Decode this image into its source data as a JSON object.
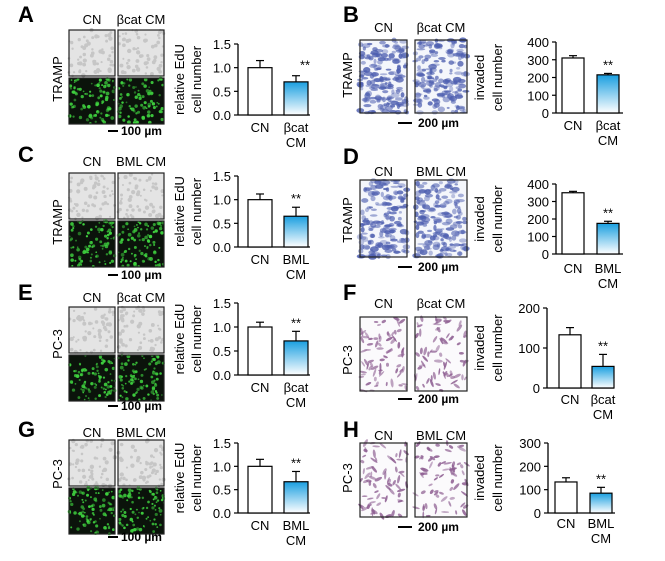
{
  "colors": {
    "control_bar": "#ffffff",
    "treated_bar_top": "#1a9fe0",
    "treated_bar_bottom": "#ffffff",
    "edu_stain": "#3fd23f",
    "crystal_violet_tramp": "#4e5fb0",
    "crystal_violet_pc3": "#8e5f92"
  },
  "chart_data": [
    {
      "panel": "A",
      "type": "bar",
      "cell_line": "TRAMP",
      "image_labels": [
        "CN",
        "βcat CM"
      ],
      "scale_bar": "100 µm",
      "ylabel": [
        "relative EdU",
        "cell number"
      ],
      "ylim": [
        0,
        1.5
      ],
      "yticks": [
        "0.0",
        "0.5",
        "1.0",
        "1.5"
      ],
      "ytick_values": [
        0,
        0.5,
        1.0,
        1.5
      ],
      "categories": [
        [
          "CN"
        ],
        [
          "βcat",
          "CM"
        ]
      ],
      "values": [
        1.0,
        0.7
      ],
      "errors": [
        0.15,
        0.13
      ],
      "significance": [
        "",
        "**"
      ]
    },
    {
      "panel": "B",
      "type": "bar",
      "cell_line": "TRAMP",
      "image_labels": [
        "CN",
        "βcat CM"
      ],
      "scale_bar": "200 µm",
      "ylabel": [
        "invaded",
        "cell number"
      ],
      "ylim": [
        0,
        400
      ],
      "yticks": [
        "0",
        "100",
        "200",
        "300",
        "400"
      ],
      "ytick_values": [
        0,
        100,
        200,
        300,
        400
      ],
      "categories": [
        [
          "CN"
        ],
        [
          "βcat",
          "CM"
        ]
      ],
      "values": [
        310,
        215
      ],
      "errors": [
        13,
        8
      ],
      "significance": [
        "",
        "**"
      ]
    },
    {
      "panel": "C",
      "type": "bar",
      "cell_line": "TRAMP",
      "image_labels": [
        "CN",
        "BML CM"
      ],
      "scale_bar": "100 µm",
      "ylabel": [
        "relative EdU",
        "cell number"
      ],
      "ylim": [
        0,
        1.5
      ],
      "yticks": [
        "0.0",
        "0.5",
        "1.0",
        "1.5"
      ],
      "ytick_values": [
        0,
        0.5,
        1.0,
        1.5
      ],
      "categories": [
        [
          "CN"
        ],
        [
          "BML",
          "CM"
        ]
      ],
      "values": [
        1.0,
        0.65
      ],
      "errors": [
        0.12,
        0.19
      ],
      "significance": [
        "",
        "**"
      ]
    },
    {
      "panel": "D",
      "type": "bar",
      "cell_line": "TRAMP",
      "image_labels": [
        "CN",
        "BML CM"
      ],
      "scale_bar": "200 µm",
      "ylabel": [
        "invaded",
        "cell number"
      ],
      "ylim": [
        0,
        400
      ],
      "yticks": [
        "0",
        "100",
        "200",
        "300",
        "400"
      ],
      "ytick_values": [
        0,
        100,
        200,
        300,
        400
      ],
      "categories": [
        [
          "CN"
        ],
        [
          "BML",
          "CM"
        ]
      ],
      "values": [
        350,
        175
      ],
      "errors": [
        8,
        12
      ],
      "significance": [
        "",
        "**"
      ]
    },
    {
      "panel": "E",
      "type": "bar",
      "cell_line": "PC-3",
      "image_labels": [
        "CN",
        "βcat CM"
      ],
      "scale_bar": "100 µm",
      "ylabel": [
        "relative EdU",
        "cell number"
      ],
      "ylim": [
        0,
        1.5
      ],
      "yticks": [
        "0.0",
        "0.5",
        "1.0",
        "1.5"
      ],
      "ytick_values": [
        0,
        0.5,
        1.0,
        1.5
      ],
      "categories": [
        [
          "CN"
        ],
        [
          "βcat",
          "CM"
        ]
      ],
      "values": [
        1.0,
        0.71
      ],
      "errors": [
        0.1,
        0.2
      ],
      "significance": [
        "",
        "**"
      ]
    },
    {
      "panel": "F",
      "type": "bar",
      "cell_line": "PC-3",
      "image_labels": [
        "CN",
        "βcat CM"
      ],
      "scale_bar": "200 µm",
      "ylabel": [
        "invaded",
        "cell number"
      ],
      "ylim": [
        0,
        200
      ],
      "yticks": [
        "0",
        "100",
        "200"
      ],
      "ytick_values": [
        0,
        100,
        200
      ],
      "categories": [
        [
          "CN"
        ],
        [
          "βcat",
          "CM"
        ]
      ],
      "values": [
        133,
        54
      ],
      "errors": [
        18,
        30
      ],
      "significance": [
        "",
        "**"
      ]
    },
    {
      "panel": "G",
      "type": "bar",
      "cell_line": "PC-3",
      "image_labels": [
        "CN",
        "BML CM"
      ],
      "scale_bar": "100 µm",
      "ylabel": [
        "relative EdU",
        "cell number"
      ],
      "ylim": [
        0,
        1.5
      ],
      "yticks": [
        "0.0",
        "0.5",
        "1.0",
        "1.5"
      ],
      "ytick_values": [
        0,
        0.5,
        1.0,
        1.5
      ],
      "categories": [
        [
          "CN"
        ],
        [
          "BML",
          "CM"
        ]
      ],
      "values": [
        1.0,
        0.67
      ],
      "errors": [
        0.15,
        0.22
      ],
      "significance": [
        "",
        "**"
      ]
    },
    {
      "panel": "H",
      "type": "bar",
      "cell_line": "PC-3",
      "image_labels": [
        "CN",
        "BML CM"
      ],
      "scale_bar": "200 µm",
      "ylabel": [
        "invaded",
        "cell number"
      ],
      "ylim": [
        0,
        300
      ],
      "yticks": [
        "0",
        "100",
        "200",
        "300"
      ],
      "ytick_values": [
        0,
        100,
        200,
        300
      ],
      "categories": [
        [
          "CN"
        ],
        [
          "BML",
          "CM"
        ]
      ],
      "values": [
        133,
        85
      ],
      "errors": [
        18,
        25
      ],
      "significance": [
        "",
        "**"
      ]
    }
  ]
}
